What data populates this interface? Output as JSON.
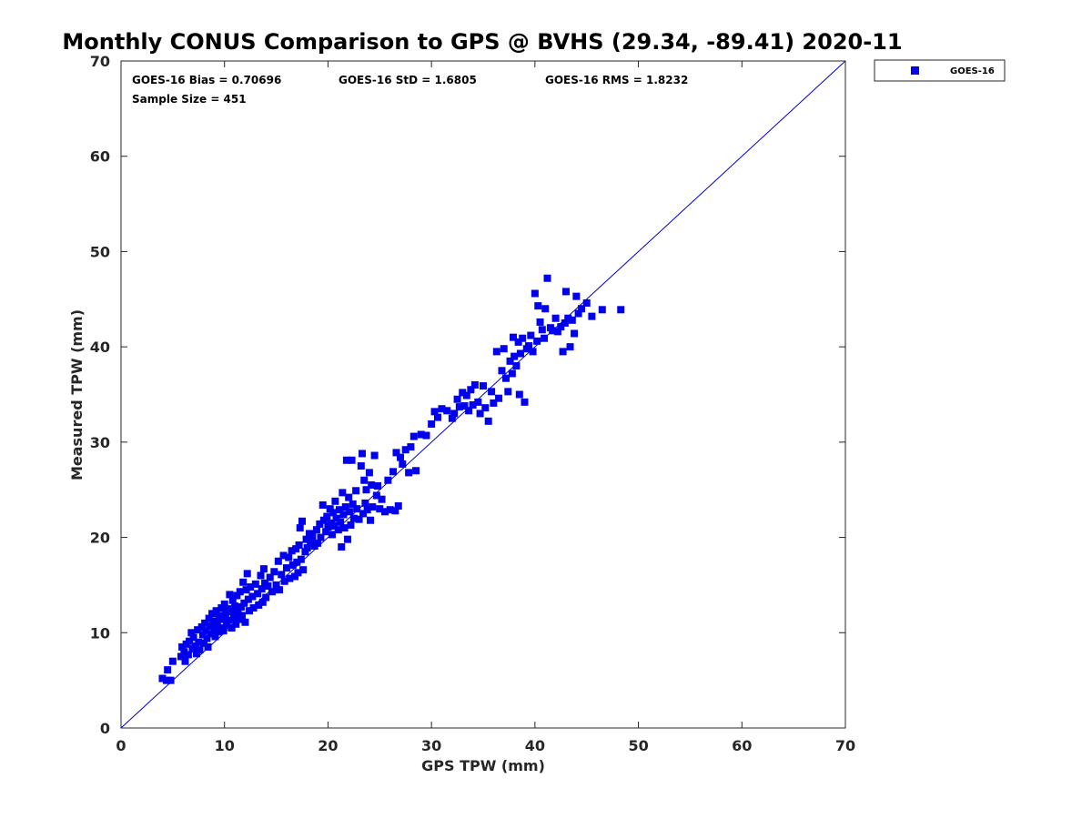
{
  "chart_data": {
    "type": "scatter",
    "title": "Monthly CONUS Comparison to GPS @ BVHS (29.34, -89.41) 2020-11",
    "xlabel": "GPS TPW (mm)",
    "ylabel": "Measured TPW (mm)",
    "xlim": [
      0,
      70
    ],
    "ylim": [
      0,
      70
    ],
    "xticks": [
      "0",
      "10",
      "20",
      "30",
      "40",
      "50",
      "60",
      "70"
    ],
    "yticks": [
      "0",
      "10",
      "20",
      "30",
      "40",
      "50",
      "60",
      "70"
    ],
    "grid": false,
    "legend_position": "outside-top-right",
    "stats": {
      "bias": "GOES-16 Bias = 0.70696",
      "std": "GOES-16 StD = 1.6805",
      "rms": "GOES-16 RMS = 1.8232",
      "sample": "Sample Size = 451"
    },
    "reference_line": {
      "from": [
        0,
        0
      ],
      "to": [
        70,
        70
      ],
      "color": "#0000cc"
    },
    "series": [
      {
        "name": "GOES-16",
        "color": "#0000ee",
        "marker": "square",
        "points": [
          [
            4.0,
            5.2
          ],
          [
            4.4,
            5.0
          ],
          [
            4.5,
            6.1
          ],
          [
            4.8,
            5.0
          ],
          [
            5.0,
            7.0
          ],
          [
            5.8,
            7.5
          ],
          [
            5.9,
            8.5
          ],
          [
            6.1,
            8.0
          ],
          [
            6.2,
            7.0
          ],
          [
            6.3,
            8.8
          ],
          [
            6.5,
            7.7
          ],
          [
            6.6,
            9.1
          ],
          [
            6.8,
            10.0
          ],
          [
            6.9,
            8.3
          ],
          [
            7.0,
            9.5
          ],
          [
            7.2,
            8.6
          ],
          [
            7.3,
            7.8
          ],
          [
            7.4,
            10.3
          ],
          [
            7.5,
            9.0
          ],
          [
            7.6,
            8.2
          ],
          [
            7.8,
            10.6
          ],
          [
            7.9,
            9.8
          ],
          [
            8.0,
            8.9
          ],
          [
            8.1,
            11.0
          ],
          [
            8.2,
            10.2
          ],
          [
            8.3,
            9.4
          ],
          [
            8.4,
            8.5
          ],
          [
            8.5,
            11.5
          ],
          [
            8.6,
            10.7
          ],
          [
            8.7,
            9.9
          ],
          [
            8.8,
            12.0
          ],
          [
            8.9,
            11.2
          ],
          [
            9.0,
            10.4
          ],
          [
            9.1,
            9.6
          ],
          [
            9.2,
            12.3
          ],
          [
            9.3,
            11.1
          ],
          [
            9.4,
            10.1
          ],
          [
            9.5,
            11.8
          ],
          [
            9.6,
            10.5
          ],
          [
            9.7,
            12.6
          ],
          [
            9.8,
            11.4
          ],
          [
            9.9,
            10.2
          ],
          [
            10.0,
            13.0
          ],
          [
            10.1,
            11.9
          ],
          [
            10.2,
            10.8
          ],
          [
            10.3,
            12.5
          ],
          [
            10.4,
            11.3
          ],
          [
            10.5,
            14.0
          ],
          [
            10.6,
            12.2
          ],
          [
            10.7,
            10.5
          ],
          [
            10.8,
            13.4
          ],
          [
            10.9,
            11.6
          ],
          [
            11.0,
            12.8
          ],
          [
            11.1,
            10.9
          ],
          [
            11.2,
            13.9
          ],
          [
            11.3,
            12.1
          ],
          [
            11.4,
            11.4
          ],
          [
            11.5,
            14.3
          ],
          [
            11.6,
            12.7
          ],
          [
            11.7,
            11.8
          ],
          [
            11.8,
            15.3
          ],
          [
            11.9,
            13.1
          ],
          [
            12.0,
            11.1
          ],
          [
            12.1,
            14.5
          ],
          [
            12.2,
            16.2
          ],
          [
            12.3,
            13.5
          ],
          [
            12.4,
            12.3
          ],
          [
            12.5,
            14.8
          ],
          [
            12.7,
            13.8
          ],
          [
            12.8,
            12.6
          ],
          [
            13.0,
            15.1
          ],
          [
            13.2,
            14.1
          ],
          [
            13.3,
            12.9
          ],
          [
            13.5,
            16.0
          ],
          [
            13.6,
            14.6
          ],
          [
            13.7,
            13.2
          ],
          [
            13.8,
            16.7
          ],
          [
            13.9,
            15.2
          ],
          [
            14.0,
            13.7
          ],
          [
            14.2,
            14.9
          ],
          [
            14.4,
            15.8
          ],
          [
            14.6,
            14.3
          ],
          [
            14.8,
            16.4
          ],
          [
            15.0,
            15.0
          ],
          [
            15.2,
            17.5
          ],
          [
            15.3,
            14.5
          ],
          [
            15.5,
            16.1
          ],
          [
            15.7,
            18.1
          ],
          [
            15.8,
            15.4
          ],
          [
            16.0,
            16.8
          ],
          [
            16.2,
            17.9
          ],
          [
            16.3,
            15.7
          ],
          [
            16.5,
            18.6
          ],
          [
            16.6,
            17.1
          ],
          [
            16.8,
            15.9
          ],
          [
            16.9,
            18.8
          ],
          [
            17.0,
            17.4
          ],
          [
            17.1,
            16.3
          ],
          [
            17.2,
            19.2
          ],
          [
            17.3,
            21.0
          ],
          [
            17.4,
            17.7
          ],
          [
            17.5,
            21.7
          ],
          [
            17.6,
            16.6
          ],
          [
            17.8,
            18.5
          ],
          [
            17.9,
            19.8
          ],
          [
            18.0,
            18.9
          ],
          [
            18.2,
            20.4
          ],
          [
            18.3,
            19.5
          ],
          [
            18.5,
            20.1
          ],
          [
            18.7,
            19.1
          ],
          [
            18.9,
            20.8
          ],
          [
            19.0,
            19.4
          ],
          [
            19.2,
            21.4
          ],
          [
            19.3,
            20.0
          ],
          [
            19.5,
            23.4
          ],
          [
            19.6,
            21.8
          ],
          [
            19.8,
            20.6
          ],
          [
            19.9,
            22.2
          ],
          [
            20.0,
            21.1
          ],
          [
            20.2,
            23.0
          ],
          [
            20.3,
            21.5
          ],
          [
            20.4,
            20.3
          ],
          [
            20.5,
            22.6
          ],
          [
            20.6,
            21.2
          ],
          [
            20.7,
            23.8
          ],
          [
            20.8,
            22.0
          ],
          [
            21.0,
            20.8
          ],
          [
            21.1,
            22.9
          ],
          [
            21.2,
            21.6
          ],
          [
            21.3,
            19.0
          ],
          [
            21.4,
            24.7
          ],
          [
            21.5,
            22.4
          ],
          [
            21.6,
            21.0
          ],
          [
            21.7,
            23.2
          ],
          [
            21.8,
            28.1
          ],
          [
            21.9,
            19.8
          ],
          [
            22.0,
            24.2
          ],
          [
            22.1,
            22.7
          ],
          [
            22.2,
            21.3
          ],
          [
            22.3,
            28.1
          ],
          [
            22.4,
            23.5
          ],
          [
            22.5,
            22.0
          ],
          [
            22.7,
            24.9
          ],
          [
            22.8,
            23.0
          ],
          [
            23.0,
            21.9
          ],
          [
            23.2,
            27.5
          ],
          [
            23.3,
            28.8
          ],
          [
            23.4,
            22.5
          ],
          [
            23.5,
            26.0
          ],
          [
            23.6,
            23.6
          ],
          [
            23.7,
            25.0
          ],
          [
            23.8,
            22.9
          ],
          [
            24.0,
            26.8
          ],
          [
            24.1,
            21.8
          ],
          [
            24.2,
            25.5
          ],
          [
            24.3,
            23.2
          ],
          [
            24.5,
            28.6
          ],
          [
            24.7,
            24.4
          ],
          [
            24.8,
            25.4
          ],
          [
            25.0,
            23.0
          ],
          [
            25.2,
            24.0
          ],
          [
            25.5,
            22.7
          ],
          [
            25.8,
            26.0
          ],
          [
            26.0,
            22.9
          ],
          [
            26.3,
            26.9
          ],
          [
            26.5,
            22.8
          ],
          [
            26.6,
            28.9
          ],
          [
            26.8,
            23.3
          ],
          [
            27.0,
            28.4
          ],
          [
            27.2,
            27.7
          ],
          [
            27.5,
            29.2
          ],
          [
            27.8,
            26.8
          ],
          [
            28.0,
            29.5
          ],
          [
            28.3,
            30.6
          ],
          [
            28.5,
            27.0
          ],
          [
            29.0,
            30.8
          ],
          [
            29.5,
            30.7
          ],
          [
            30.0,
            31.9
          ],
          [
            30.3,
            33.2
          ],
          [
            30.6,
            32.6
          ],
          [
            31.0,
            33.5
          ],
          [
            31.5,
            33.3
          ],
          [
            32.0,
            32.5
          ],
          [
            32.2,
            33.0
          ],
          [
            32.5,
            34.5
          ],
          [
            32.7,
            33.7
          ],
          [
            33.0,
            35.2
          ],
          [
            33.2,
            33.8
          ],
          [
            33.4,
            34.9
          ],
          [
            33.6,
            33.3
          ],
          [
            33.8,
            35.5
          ],
          [
            34.0,
            33.9
          ],
          [
            34.2,
            36.0
          ],
          [
            34.5,
            34.2
          ],
          [
            34.7,
            33.0
          ],
          [
            35.0,
            35.9
          ],
          [
            35.2,
            33.6
          ],
          [
            35.5,
            32.2
          ],
          [
            35.8,
            35.3
          ],
          [
            36.0,
            34.1
          ],
          [
            36.3,
            39.5
          ],
          [
            36.5,
            34.6
          ],
          [
            36.8,
            37.5
          ],
          [
            37.0,
            39.8
          ],
          [
            37.2,
            36.7
          ],
          [
            37.4,
            35.3
          ],
          [
            37.6,
            38.5
          ],
          [
            37.8,
            37.2
          ],
          [
            37.9,
            41.0
          ],
          [
            38.0,
            39.0
          ],
          [
            38.2,
            38.0
          ],
          [
            38.4,
            40.5
          ],
          [
            38.5,
            35.0
          ],
          [
            38.6,
            39.3
          ],
          [
            38.8,
            40.9
          ],
          [
            39.0,
            34.2
          ],
          [
            39.2,
            39.8
          ],
          [
            39.4,
            40.1
          ],
          [
            39.6,
            41.2
          ],
          [
            39.8,
            39.5
          ],
          [
            40.0,
            45.6
          ],
          [
            40.2,
            40.6
          ],
          [
            40.3,
            44.3
          ],
          [
            40.5,
            42.6
          ],
          [
            40.7,
            41.8
          ],
          [
            40.9,
            40.9
          ],
          [
            41.0,
            44.0
          ],
          [
            41.2,
            47.2
          ],
          [
            41.5,
            42.0
          ],
          [
            41.7,
            41.7
          ],
          [
            42.0,
            43.0
          ],
          [
            42.2,
            41.6
          ],
          [
            42.5,
            42.1
          ],
          [
            42.7,
            39.5
          ],
          [
            42.9,
            42.5
          ],
          [
            43.0,
            45.8
          ],
          [
            43.2,
            43.0
          ],
          [
            43.4,
            40.0
          ],
          [
            43.6,
            42.8
          ],
          [
            43.8,
            41.4
          ],
          [
            44.0,
            45.3
          ],
          [
            44.2,
            43.5
          ],
          [
            44.5,
            44.0
          ],
          [
            45.0,
            44.6
          ],
          [
            45.5,
            43.2
          ],
          [
            46.5,
            43.9
          ],
          [
            48.3,
            43.9
          ]
        ]
      }
    ]
  }
}
